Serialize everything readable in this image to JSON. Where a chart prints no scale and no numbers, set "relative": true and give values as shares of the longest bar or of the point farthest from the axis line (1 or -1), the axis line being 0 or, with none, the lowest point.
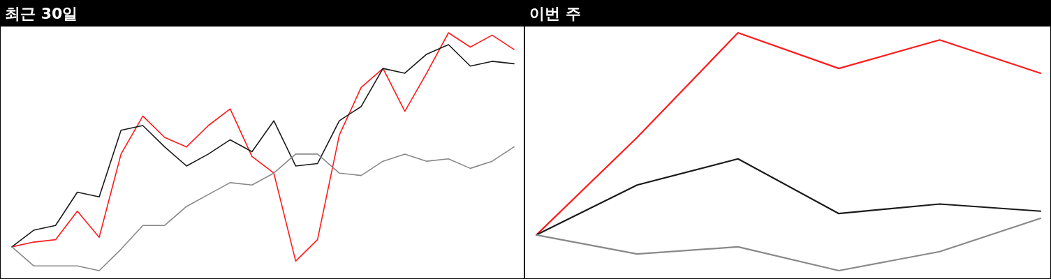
{
  "chart_data": [
    {
      "type": "line",
      "relative": true,
      "title": "최근 30일",
      "categories": [
        null,
        null,
        null,
        null,
        null,
        null,
        null,
        null,
        null,
        null,
        null,
        null,
        null,
        null,
        null,
        null,
        null,
        null,
        null,
        null,
        null,
        null,
        null,
        null
      ],
      "series": [
        {
          "color": "#ff1a1a",
          "values": [
            0.1,
            0.12,
            0.13,
            0.25,
            0.14,
            0.49,
            0.65,
            0.56,
            0.52,
            0.61,
            0.68,
            0.48,
            0.41,
            0.04,
            0.13,
            0.57,
            0.77,
            0.85,
            0.67,
            0.83,
            1.0,
            0.94,
            0.99,
            0.93
          ]
        },
        {
          "color": "#1a1a1a",
          "values": [
            0.1,
            0.17,
            0.19,
            0.33,
            0.31,
            0.59,
            0.61,
            0.52,
            0.44,
            0.49,
            0.55,
            0.5,
            0.63,
            0.44,
            0.45,
            0.63,
            0.69,
            0.85,
            0.83,
            0.91,
            0.95,
            0.86,
            0.88,
            0.87
          ]
        },
        {
          "color": "#888888",
          "values": [
            0.1,
            0.02,
            0.02,
            0.02,
            0,
            0.09,
            0.19,
            0.19,
            0.27,
            0.32,
            0.37,
            0.36,
            0.41,
            0.49,
            0.49,
            0.41,
            0.4,
            0.46,
            0.49,
            0.46,
            0.47,
            0.43,
            0.46,
            0.52
          ]
        }
      ]
    },
    {
      "type": "line",
      "relative": true,
      "title": "이번 주",
      "categories": [
        null,
        null,
        null,
        null,
        null,
        null
      ],
      "series": [
        {
          "color": "#ff1a1a",
          "values": [
            0.15,
            0.56,
            1.0,
            0.85,
            0.97,
            0.83
          ]
        },
        {
          "color": "#1a1a1a",
          "values": [
            0.15,
            0.36,
            0.47,
            0.24,
            0.28,
            0.25
          ]
        },
        {
          "color": "#888888",
          "values": [
            0.15,
            0.07,
            0.1,
            0,
            0.08,
            0.22
          ]
        }
      ]
    }
  ]
}
